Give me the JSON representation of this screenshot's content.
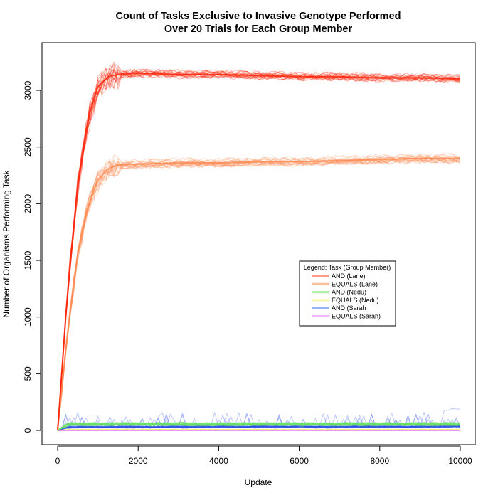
{
  "chart_data": {
    "type": "line",
    "title": "Count of Tasks Exclusive to Invasive Genotype Performed",
    "subtitle": "Over 20 Trials for Each Group Member",
    "xlabel": "Update",
    "ylabel": "Number of Organisms Performing Task",
    "xlim": [
      0,
      10000
    ],
    "ylim": [
      0,
      3400
    ],
    "x_ticks": [
      "0",
      "2000",
      "4000",
      "6000",
      "8000",
      "10000"
    ],
    "y_ticks": [
      "0",
      "500",
      "1000",
      "1500",
      "2000",
      "2500",
      "3000"
    ],
    "trials_per_series": 20,
    "grid": false,
    "legend_position": "center-right",
    "legend_title": "Legend: Task (Group Member)",
    "x": [
      0,
      250,
      500,
      750,
      1000,
      1250,
      1500,
      2000,
      3000,
      4000,
      5000,
      6000,
      7000,
      8000,
      9000,
      10000
    ],
    "series": [
      {
        "name": "AND (Lane)",
        "color": "#ff2a10",
        "legend_color": "#ff9a90",
        "values": [
          0,
          1240,
          2150,
          2750,
          3030,
          3120,
          3140,
          3150,
          3140,
          3140,
          3130,
          3120,
          3120,
          3110,
          3110,
          3100
        ]
      },
      {
        "name": "EQUALS (Lane)",
        "color": "#ff8c55",
        "legend_color": "#ffbf9a",
        "values": [
          0,
          880,
          1560,
          1980,
          2210,
          2310,
          2340,
          2350,
          2360,
          2360,
          2370,
          2370,
          2380,
          2390,
          2400,
          2400
        ]
      },
      {
        "name": "AND (Nedu)",
        "color": "#66e060",
        "legend_color": "#a8f0a0",
        "values": [
          0,
          55,
          55,
          55,
          55,
          55,
          55,
          55,
          55,
          55,
          55,
          55,
          55,
          55,
          55,
          55
        ]
      },
      {
        "name": "EQUALS (Nedu)",
        "color": "#f2ee70",
        "legend_color": "#f7f4a0",
        "values": [
          0,
          5,
          5,
          5,
          5,
          5,
          5,
          5,
          5,
          5,
          5,
          5,
          5,
          5,
          5,
          5
        ]
      },
      {
        "name": "AND (Sarah",
        "color": "#3050e8",
        "legend_color": "#9ab0f4",
        "values": [
          0,
          30,
          30,
          30,
          30,
          30,
          30,
          30,
          30,
          32,
          32,
          32,
          32,
          32,
          32,
          35
        ]
      },
      {
        "name": "EQUALS (Sarah)",
        "color": "#e070f0",
        "legend_color": "#f0b8f6",
        "values": [
          0,
          0,
          0,
          0,
          0,
          0,
          0,
          0,
          0,
          0,
          0,
          0,
          0,
          0,
          0,
          0
        ]
      }
    ]
  }
}
